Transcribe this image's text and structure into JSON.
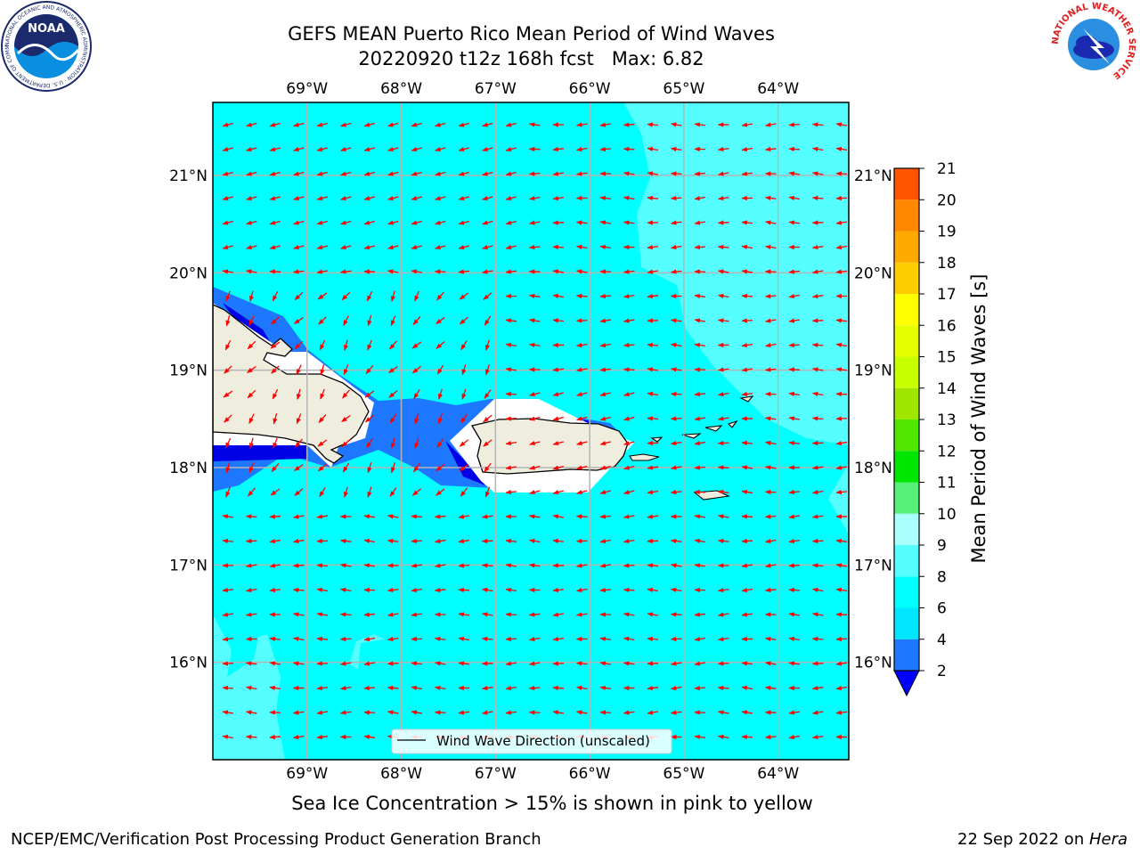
{
  "header": {
    "title_line1": "GEFS MEAN Puerto Rico Mean Period of Wind Waves",
    "title_line2": "20220920 t12z 168h fcst   Max: 6.82",
    "noaa_logo_text": "NOAA",
    "noaa_ring_text": "NATIONAL OCEANIC AND ATMOSPHERIC ADMINISTRATION · U.S. DEPARTMENT OF COMMERCE",
    "nws_ring_text": "NATIONAL WEATHER SERVICE"
  },
  "map": {
    "lon_labels": [
      "69°W",
      "68°W",
      "67°W",
      "66°W",
      "65°W",
      "64°W"
    ],
    "lat_labels": [
      "21°N",
      "20°N",
      "19°N",
      "18°N",
      "17°N",
      "16°N"
    ],
    "extent": {
      "lon": [
        -70.0,
        -63.25
      ],
      "lat": [
        15.0,
        21.75
      ]
    },
    "ocean_color": "#00ffff",
    "shallow_color": "#1e78ff",
    "deep_color": "#0000e6",
    "light_color": "#55ffff",
    "land_color": "#efedde",
    "arrow_color": "#ff0000",
    "legend_label": "Wind Wave Direction (unscaled)"
  },
  "colorbar": {
    "label": "Mean Period of Wind Waves [s]",
    "ticks": [
      "2",
      "4",
      "6",
      "8",
      "9",
      "10",
      "11",
      "12",
      "13",
      "14",
      "15",
      "16",
      "17",
      "18",
      "19",
      "20",
      "21"
    ],
    "colors": [
      "#1e78ff",
      "#00e6ff",
      "#00ffff",
      "#55ffff",
      "#aaffff",
      "#55f078",
      "#00e600",
      "#50e600",
      "#a0e600",
      "#c8ff00",
      "#e6ff00",
      "#ffff00",
      "#ffcc00",
      "#ffaa00",
      "#ff8800",
      "#ff5500",
      "#ff2200",
      "#ff0000"
    ],
    "under_color": "#0000ff"
  },
  "chart_data": {
    "type": "heatmap",
    "title": "GEFS MEAN Puerto Rico Mean Period of Wind Waves",
    "subtitle": "20220920 t12z 168h fcst   Max: 6.82",
    "variable": "Mean Period of Wind Waves [s]",
    "max": 6.82,
    "levels": [
      2,
      4,
      6,
      8,
      9,
      10,
      11,
      12,
      13,
      14,
      15,
      16,
      17,
      18,
      19,
      20,
      21
    ],
    "xlim": [
      -70.0,
      -63.25
    ],
    "ylim": [
      15.0,
      21.75
    ],
    "vector_field": "Wind Wave Direction (unscaled)",
    "dominant_direction": "from east to west"
  },
  "captions": {
    "sea_ice": "Sea Ice Concentration > 15% is shown in pink to yellow",
    "footer_left": "NCEP/EMC/Verification Post Processing Product Generation Branch",
    "footer_date": "22 Sep 2022 on ",
    "footer_machine": "Hera"
  }
}
